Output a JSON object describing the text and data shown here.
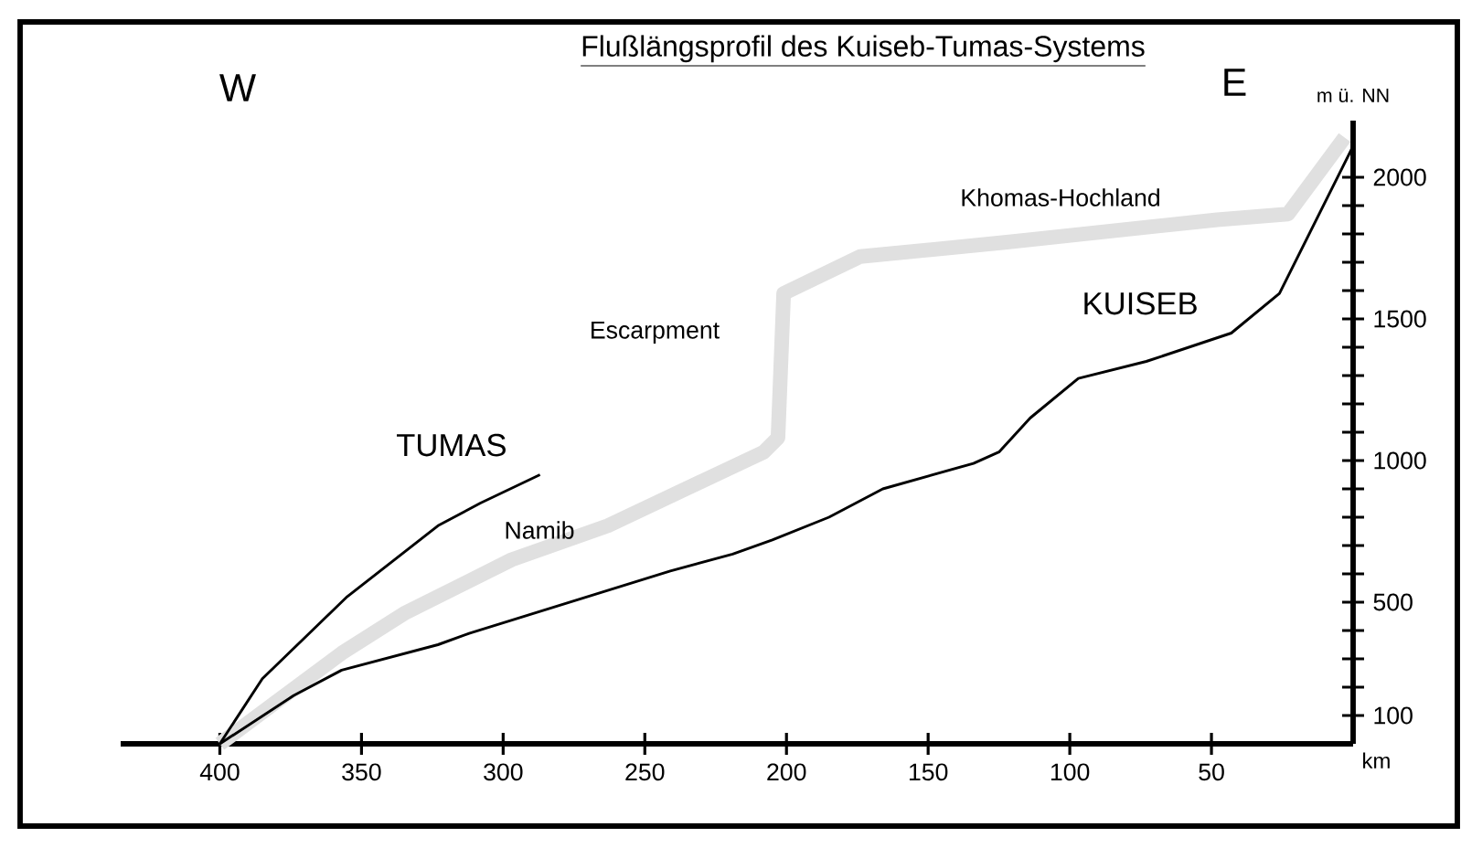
{
  "chart_data": {
    "type": "line",
    "title": "Flußlängsprofil des Kuiseb-Tumas-Systems",
    "xlabel": "km",
    "ylabel": "m ü. NN",
    "xlim": [
      435,
      0
    ],
    "ylim": [
      0,
      2200
    ],
    "xticks": [
      400,
      350,
      300,
      250,
      200,
      150,
      100,
      50
    ],
    "yticks": [
      100,
      {
        "value": 200,
        "label": null
      },
      {
        "value": 300,
        "label": null
      },
      {
        "value": 400,
        "label": null
      },
      500,
      {
        "value": 600,
        "label": null
      },
      {
        "value": 700,
        "label": null
      },
      {
        "value": 800,
        "label": null
      },
      {
        "value": 900,
        "label": null
      },
      1000,
      {
        "value": 1100,
        "label": null
      },
      {
        "value": 1200,
        "label": null
      },
      {
        "value": 1300,
        "label": null
      },
      {
        "value": 1400,
        "label": null
      },
      1500,
      {
        "value": 1600,
        "label": null
      },
      {
        "value": 1700,
        "label": null
      },
      {
        "value": 1800,
        "label": null
      },
      {
        "value": 1900,
        "label": null
      },
      2000
    ],
    "series": [
      {
        "color": "#e0e0e0",
        "x": [
          400,
          357,
          335,
          297,
          263,
          208,
          203,
          201,
          174,
          123,
          48,
          23,
          3
        ],
        "values": [
          0,
          320,
          460,
          650,
          770,
          1030,
          1080,
          1590,
          1720,
          1770,
          1850,
          1870,
          2140
        ]
      },
      {
        "name": "TUMAS",
        "color": "#000000",
        "x": [
          400,
          385,
          355,
          323,
          308,
          287
        ],
        "values": [
          0,
          230,
          520,
          770,
          850,
          950
        ]
      },
      {
        "name": "KUISEB",
        "color": "#000000",
        "x": [
          400,
          374,
          357,
          323,
          312,
          241,
          219,
          205,
          185,
          166,
          134,
          125,
          114,
          97,
          73,
          43,
          26,
          0
        ],
        "values": [
          0,
          170,
          260,
          350,
          390,
          610,
          670,
          720,
          800,
          900,
          990,
          1030,
          1150,
          1290,
          1350,
          1450,
          1590,
          2110
        ]
      }
    ],
    "annotations": [
      "W",
      "E",
      "Khomas-Hochland",
      "Escarpment",
      "Namib"
    ]
  }
}
